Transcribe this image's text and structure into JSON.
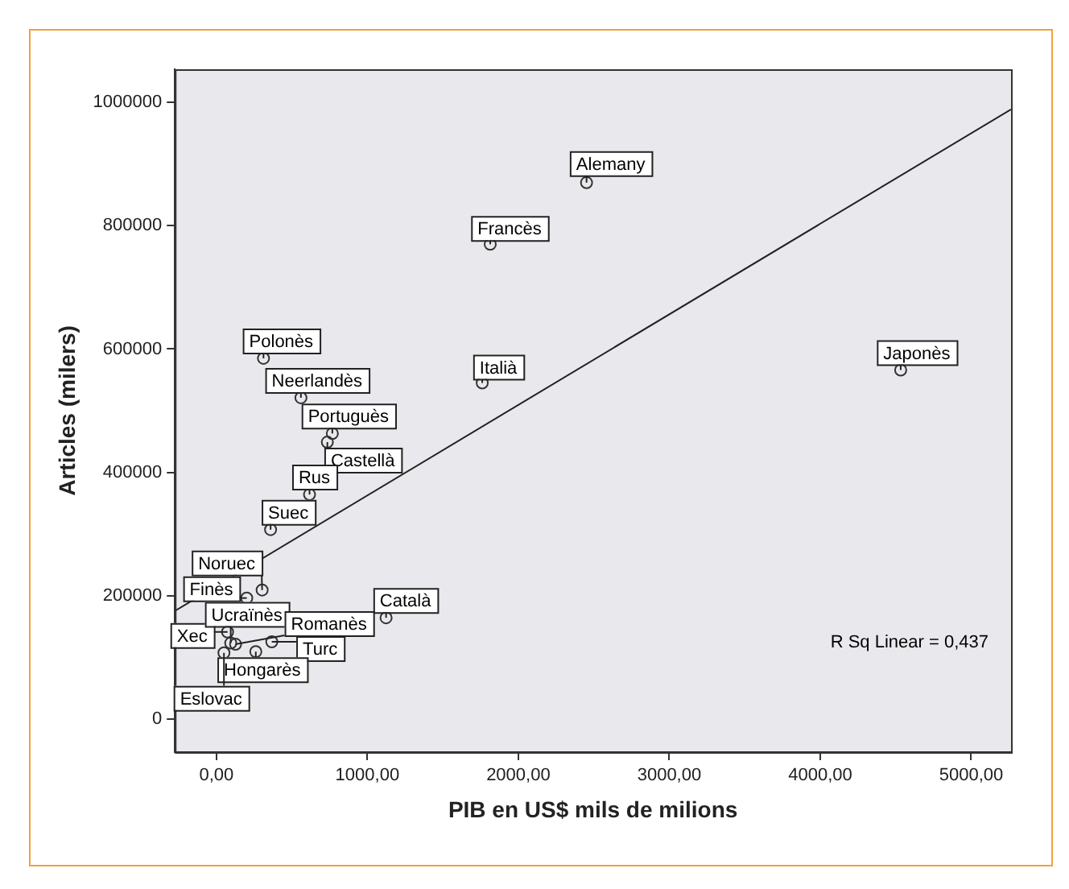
{
  "chart_data": {
    "type": "scatter",
    "xlabel": "PIB en US$ mils de milions",
    "ylabel": "Articles (milers)",
    "xlim": [
      -275,
      5264
    ],
    "ylim": [
      -54000,
      1054000
    ],
    "xticks": [
      {
        "value": 0,
        "label": "0,00"
      },
      {
        "value": 1000,
        "label": "1000,00"
      },
      {
        "value": 2000,
        "label": "2000,00"
      },
      {
        "value": 3000,
        "label": "3000,00"
      },
      {
        "value": 4000,
        "label": "4000,00"
      },
      {
        "value": 5000,
        "label": "5000,00"
      }
    ],
    "yticks": [
      0,
      200000,
      400000,
      600000,
      800000,
      1000000
    ],
    "grid": false,
    "legend": false,
    "series": [
      {
        "type": "scatter",
        "marker": "circle",
        "color": "#333333",
        "x": [
          2452,
          1814,
          312,
          560,
          768,
          735,
          617,
          359,
          1761,
          4533,
          303,
          201,
          1124,
          74,
          95,
          127,
          367,
          261,
          50
        ],
        "values": [
          870000,
          770000,
          585000,
          521000,
          463000,
          449000,
          364000,
          307000,
          545000,
          566000,
          209000,
          196000,
          164000,
          141000,
          123000,
          121000,
          125000,
          109000,
          107000
        ]
      },
      {
        "type": "line",
        "color": "#222222",
        "x": [
          -275,
          5264
        ],
        "values": [
          175000,
          989000
        ]
      }
    ],
    "annotations": [
      {
        "text": "Alemany",
        "x": 2452,
        "y": 870000
      },
      {
        "text": "Francès",
        "x": 1814,
        "y": 770000
      },
      {
        "text": "Polonès",
        "x": 312,
        "y": 585000
      },
      {
        "text": "Neerlandès",
        "x": 560,
        "y": 521000
      },
      {
        "text": "Portuguès",
        "x": 768,
        "y": 463000
      },
      {
        "text": "Castellà",
        "x": 735,
        "y": 449000
      },
      {
        "text": "Rus",
        "x": 617,
        "y": 364000
      },
      {
        "text": "Suec",
        "x": 359,
        "y": 307000
      },
      {
        "text": "Italià",
        "x": 1761,
        "y": 545000
      },
      {
        "text": "Japonès",
        "x": 4533,
        "y": 566000
      },
      {
        "text": "Noruec",
        "x": 303,
        "y": 209000
      },
      {
        "text": "Finès",
        "x": 201,
        "y": 196000
      },
      {
        "text": "Català",
        "x": 1124,
        "y": 164000
      },
      {
        "text": "Xec",
        "x": 74,
        "y": 141000
      },
      {
        "text": "Ucraïnès",
        "x": 95,
        "y": 123000
      },
      {
        "text": "Romanès",
        "x": 127,
        "y": 121000
      },
      {
        "text": "Turc",
        "x": 367,
        "y": 125000
      },
      {
        "text": "Hongarès",
        "x": 261,
        "y": 109000
      },
      {
        "text": "Eslovac",
        "x": 50,
        "y": 107000
      },
      "R Sq Linear = 0,437"
    ]
  }
}
